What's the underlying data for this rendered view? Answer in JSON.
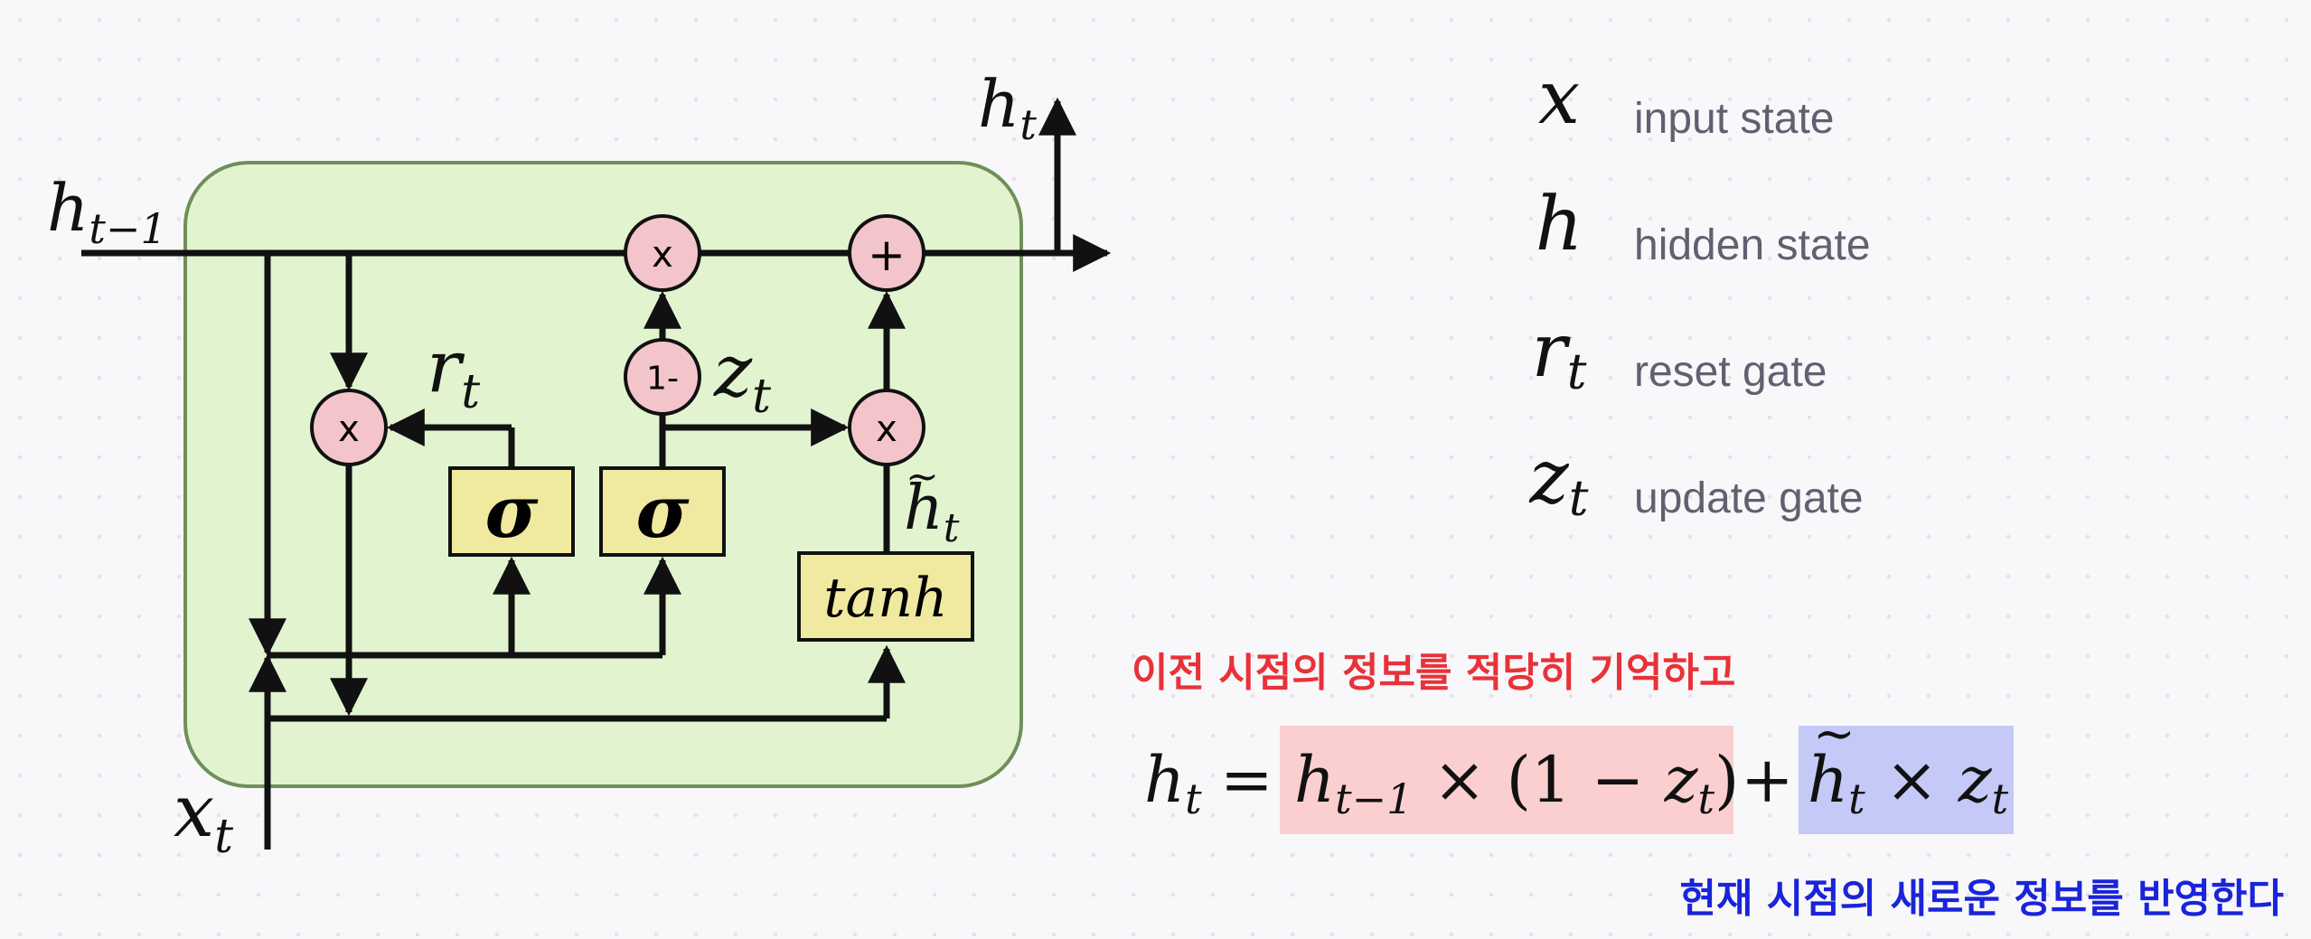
{
  "diagram": {
    "labels": {
      "h_out": "h",
      "h_out_sub": "t",
      "h_prev": "h",
      "h_prev_sub": "t−1",
      "x_in": "x",
      "x_in_sub": "t",
      "r_gate": "r",
      "r_gate_sub": "t",
      "z_gate": "z",
      "z_gate_sub": "t",
      "h_tilde": "h",
      "h_tilde_sub": "t",
      "tilde_mark": "~"
    },
    "nodes": {
      "mult_reset": "x",
      "mult_update": "x",
      "mult_candidate": "x",
      "one_minus": "1-",
      "add": "+",
      "sigma_r": "σ",
      "sigma_z": "σ",
      "tanh": "tanh"
    },
    "colors": {
      "cell_fill": "#e1f4cf",
      "cell_border": "#6f8f5a",
      "node_fill": "#f4c4cb",
      "gate_fill": "#f0e9a0"
    }
  },
  "legend": [
    {
      "symbol": "x",
      "sub": "",
      "desc": "input state"
    },
    {
      "symbol": "h",
      "sub": "",
      "desc": "hidden state"
    },
    {
      "symbol": "r",
      "sub": "t",
      "desc": "reset gate"
    },
    {
      "symbol": "z",
      "sub": "t",
      "desc": "update gate"
    }
  ],
  "captions": {
    "top": "이전 시점의 정보를 적당히 기억하고",
    "bottom": "현재 시점의 새로운 정보를 반영한다"
  },
  "equation": {
    "lhs": "h",
    "lhs_sub": "t",
    "equals": "=",
    "term1_h": "h",
    "term1_h_sub": "t−1",
    "times1": "×",
    "paren_open": "(1 −",
    "term1_z": "z",
    "term1_z_sub": "t",
    "paren_close": ")",
    "plus": "+",
    "term2_h": "h",
    "term2_h_sub": "t",
    "times2": "×",
    "term2_z": "z",
    "term2_z_sub": "t",
    "highlight_colors": {
      "memory": "#fbcfcf",
      "new": "#c5c9f7"
    }
  }
}
